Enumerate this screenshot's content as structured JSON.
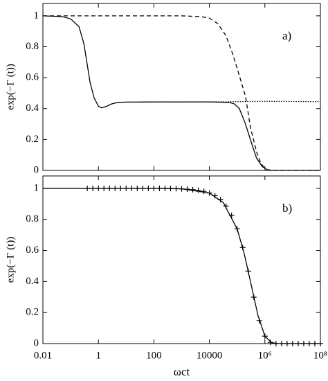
{
  "chart_data": [
    {
      "type": "line",
      "xscale": "log",
      "annotation": "a)",
      "y_label": "exp(−Γ (t))",
      "xlim": [
        0.01,
        100000000
      ],
      "ylim": [
        0,
        1.08
      ],
      "xticks": [
        0.01,
        1,
        100,
        10000,
        {
          "value": 1000000,
          "label": "10⁶"
        },
        {
          "value": 100000000,
          "label": "10⁸"
        }
      ],
      "yticks": [
        0,
        0.2,
        0.4,
        0.6,
        0.8,
        1
      ],
      "series": [
        {
          "color": "#000000",
          "style": "solid",
          "x": [
            0.01,
            0.05,
            0.1,
            0.2,
            0.3,
            0.4,
            0.5,
            0.7,
            1,
            1.3,
            2,
            3,
            5,
            10,
            100,
            10000,
            50000,
            80000,
            120000,
            200000,
            300000,
            500000,
            800000,
            1200000,
            2000000,
            100000000
          ],
          "values": [
            1,
            0.995,
            0.98,
            0.93,
            0.82,
            0.68,
            0.57,
            0.47,
            0.415,
            0.405,
            0.415,
            0.43,
            0.44,
            0.442,
            0.443,
            0.443,
            0.44,
            0.43,
            0.4,
            0.3,
            0.2,
            0.08,
            0.025,
            0.005,
            0,
            0
          ]
        },
        {
          "color": "#000000",
          "style": "dashed",
          "x": [
            0.01,
            1000,
            5000,
            10000,
            20000,
            40000,
            70000,
            100000,
            200000,
            300000,
            500000,
            700000,
            1000000,
            1500000,
            100000000
          ],
          "values": [
            1,
            1,
            0.995,
            0.985,
            0.95,
            0.87,
            0.75,
            0.66,
            0.48,
            0.28,
            0.12,
            0.05,
            0.01,
            0,
            0
          ]
        },
        {
          "color": "#000000",
          "style": "dotted",
          "x": [
            10,
            10000,
            100000,
            1000000,
            100000000
          ],
          "values": [
            0.442,
            0.443,
            0.445,
            0.447,
            0.445
          ]
        }
      ]
    },
    {
      "type": "line",
      "xscale": "log",
      "annotation": "b)",
      "y_label": "exp(−Γ (t))",
      "x_label": "ωct",
      "xlim": [
        0.01,
        100000000
      ],
      "ylim": [
        0,
        1.08
      ],
      "xticks": [
        0.01,
        1,
        100,
        10000,
        {
          "value": 1000000,
          "label": "10⁶"
        },
        {
          "value": 100000000,
          "label": "10⁸"
        }
      ],
      "yticks": [
        0,
        0.2,
        0.4,
        0.6,
        0.8,
        1
      ],
      "series": [
        {
          "color": "#000000",
          "style": "solid",
          "x": [
            0.01,
            100,
            1000,
            10000,
            31623,
            100000,
            177828,
            316228,
            562341,
            1000000,
            1778279,
            3162278,
            100000000
          ],
          "values": [
            1,
            1,
            0.997,
            0.97,
            0.909,
            0.739,
            0.583,
            0.384,
            0.182,
            0.048,
            0.005,
            0,
            0
          ]
        },
        {
          "color": "#000000",
          "style": "none",
          "marker": "plus",
          "x": [
            0.398,
            0.631,
            1,
            1.585,
            2.512,
            3.981,
            6.31,
            10,
            15.85,
            25.12,
            39.81,
            63.1,
            100,
            158.5,
            251.2,
            398.1,
            631,
            1000,
            1585,
            2512,
            3981,
            6310,
            10000,
            15849,
            25119,
            39811,
            63096,
            100000,
            158489,
            251189,
            398107,
            630957,
            1000000,
            1584893,
            2511886,
            3981072,
            6309573,
            10000000,
            15848932,
            25118864,
            39810717,
            63095734,
            100000000
          ],
          "values": [
            1,
            1,
            1,
            1,
            1,
            1,
            1,
            1,
            1,
            1,
            1,
            1,
            1,
            1,
            1,
            0.999,
            0.998,
            0.997,
            0.995,
            0.992,
            0.988,
            0.981,
            0.97,
            0.953,
            0.927,
            0.886,
            0.826,
            0.739,
            0.619,
            0.467,
            0.299,
            0.148,
            0.048,
            0.008,
            0,
            0,
            0,
            0,
            0,
            0,
            0,
            0,
            0
          ]
        }
      ]
    }
  ]
}
